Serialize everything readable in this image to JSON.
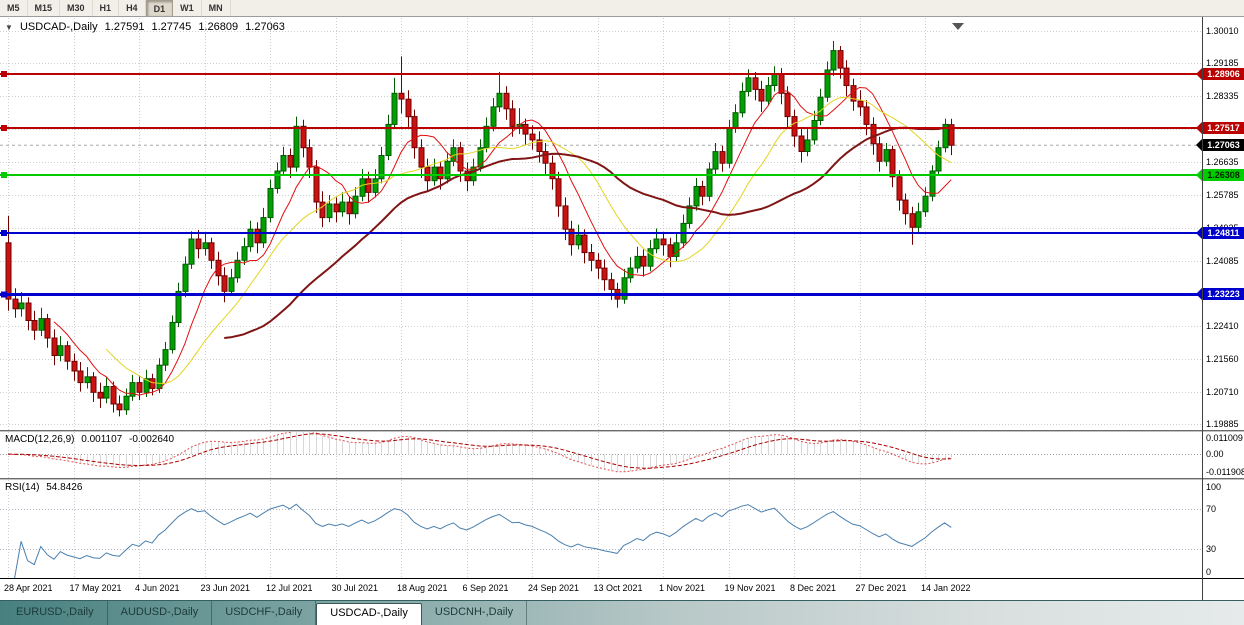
{
  "toolbar": {
    "timeframes": [
      {
        "label": "M5",
        "active": false
      },
      {
        "label": "M15",
        "active": false
      },
      {
        "label": "M30",
        "active": false
      },
      {
        "label": "H1",
        "active": false
      },
      {
        "label": "H4",
        "active": false
      },
      {
        "label": "D1",
        "active": true
      },
      {
        "label": "W1",
        "active": false
      },
      {
        "label": "MN",
        "active": false
      }
    ]
  },
  "header": {
    "collapse_icon": "▼",
    "symbol": "USDCAD-,Daily",
    "open": "1.27591",
    "high": "1.27745",
    "low": "1.26809",
    "close": "1.27063"
  },
  "price_axis": {
    "ticks": [
      "1.30010",
      "1.29185",
      "1.28335",
      "1.27485",
      "1.26635",
      "1.25785",
      "1.24935",
      "1.24085",
      "1.23235",
      "1.22410",
      "1.21560",
      "1.20710",
      "1.19885"
    ]
  },
  "hlines": [
    {
      "price": 1.28906,
      "label": "1.28906",
      "color": "#bb0000",
      "text_color": "#ffffff",
      "width": 2
    },
    {
      "price": 1.27517,
      "label": "1.27517",
      "color": "#bb0000",
      "text_color": "#ffffff",
      "width": 2
    },
    {
      "price": 1.26308,
      "label": "1.26308",
      "color": "#00cc00",
      "text_color": "#002200",
      "width": 2
    },
    {
      "price": 1.24811,
      "label": "1.24811",
      "color": "#0000cc",
      "text_color": "#ffffff",
      "width": 2
    },
    {
      "price": 1.23223,
      "label": "1.23223",
      "color": "#0000cc",
      "text_color": "#ffffff",
      "width": 3
    }
  ],
  "current_price": {
    "value": 1.27063,
    "label": "1.27063",
    "bg": "#000000",
    "text_color": "#ffffff"
  },
  "macd": {
    "title": "MACD(12,26,9)",
    "value_main": "0.001107",
    "value_signal": "-0.002640",
    "fast": 12,
    "slow": 26,
    "signal_period": 9,
    "range": [
      -0.011908,
      0.011009
    ],
    "axis_labels": [
      "0.011009",
      "0.00",
      "-0.011908"
    ],
    "line_color": "#e05050",
    "signal_color": "#aa0000",
    "hist_color": "#d8d8d8"
  },
  "rsi": {
    "title": "RSI(14)",
    "value": "54.8426",
    "period": 14,
    "levels": [
      70,
      30
    ],
    "axis_labels": [
      "100",
      "70",
      "30",
      "0"
    ],
    "color": "#4a7fae"
  },
  "tabs": {
    "items": [
      {
        "label": "EURUSD-,Daily",
        "active": false
      },
      {
        "label": "AUDUSD-,Daily",
        "active": false
      },
      {
        "label": "USDCHF-,Daily",
        "active": false
      },
      {
        "label": "USDCAD-,Daily",
        "active": true
      },
      {
        "label": "USDCNH-,Daily",
        "active": false
      }
    ]
  },
  "shift_marker_color": "#555555",
  "chart_data": {
    "type": "candlestick",
    "symbol": "USDCAD",
    "timeframe": "Daily",
    "y_range": [
      1.1973,
      1.3034
    ],
    "bars_per_label": 10,
    "x_labels": [
      "28 Apr 2021",
      "17 May 2021",
      "4 Jun 2021",
      "23 Jun 2021",
      "12 Jul 2021",
      "30 Jul 2021",
      "18 Aug 2021",
      "6 Sep 2021",
      "24 Sep 2021",
      "13 Oct 2021",
      "1 Nov 2021",
      "19 Nov 2021",
      "8 Dec 2021",
      "27 Dec 2021",
      "14 Jan 2022"
    ],
    "up_fill": "#00a000",
    "up_stroke": "#005a00",
    "down_fill": "#cc1111",
    "down_stroke": "#6e0000",
    "moving_averages": [
      {
        "period": 8,
        "color": "#e01010",
        "width": 1
      },
      {
        "period": 16,
        "color": "#e2d51f",
        "width": 1
      },
      {
        "period": 34,
        "color": "#801515",
        "width": 2
      }
    ],
    "ohlc": [
      [
        1.2455,
        1.2525,
        1.228,
        1.231
      ],
      [
        1.231,
        1.2338,
        1.2262,
        1.2285
      ],
      [
        1.2285,
        1.2328,
        1.2265,
        1.23
      ],
      [
        1.23,
        1.2315,
        1.223,
        1.2255
      ],
      [
        1.2255,
        1.228,
        1.2205,
        1.223
      ],
      [
        1.223,
        1.2288,
        1.2215,
        1.226
      ],
      [
        1.226,
        1.2272,
        1.2185,
        1.221
      ],
      [
        1.221,
        1.2232,
        1.214,
        1.2165
      ],
      [
        1.2165,
        1.2215,
        1.215,
        1.219
      ],
      [
        1.219,
        1.2202,
        1.2128,
        1.215
      ],
      [
        1.215,
        1.217,
        1.21,
        1.2125
      ],
      [
        1.2125,
        1.2148,
        1.2072,
        1.2095
      ],
      [
        1.2095,
        1.2135,
        1.208,
        1.211
      ],
      [
        1.211,
        1.2122,
        1.2045,
        1.207
      ],
      [
        1.207,
        1.2095,
        1.203,
        1.2055
      ],
      [
        1.2055,
        1.2108,
        1.2042,
        1.2085
      ],
      [
        1.2085,
        1.2098,
        1.2018,
        1.204
      ],
      [
        1.204,
        1.2062,
        1.2008,
        1.2025
      ],
      [
        1.2025,
        1.208,
        1.2012,
        1.206
      ],
      [
        1.206,
        1.2115,
        1.2048,
        1.2095
      ],
      [
        1.2095,
        1.2112,
        1.205,
        1.207
      ],
      [
        1.207,
        1.2128,
        1.2058,
        1.2105
      ],
      [
        1.2105,
        1.2118,
        1.2062,
        1.208
      ],
      [
        1.208,
        1.2158,
        1.2068,
        1.214
      ],
      [
        1.214,
        1.22,
        1.2125,
        1.218
      ],
      [
        1.218,
        1.2268,
        1.217,
        1.225
      ],
      [
        1.225,
        1.2352,
        1.2238,
        1.233
      ],
      [
        1.233,
        1.242,
        1.2315,
        1.24
      ],
      [
        1.24,
        1.2485,
        1.2388,
        1.2465
      ],
      [
        1.2465,
        1.2488,
        1.2415,
        1.244
      ],
      [
        1.244,
        1.2478,
        1.2422,
        1.2455
      ],
      [
        1.2455,
        1.2468,
        1.2388,
        1.241
      ],
      [
        1.241,
        1.2432,
        1.2345,
        1.237
      ],
      [
        1.237,
        1.2392,
        1.2302,
        1.233
      ],
      [
        1.233,
        1.2388,
        1.2318,
        1.2365
      ],
      [
        1.2365,
        1.2432,
        1.2352,
        1.241
      ],
      [
        1.241,
        1.2468,
        1.2398,
        1.2445
      ],
      [
        1.2445,
        1.2512,
        1.2432,
        1.249
      ],
      [
        1.249,
        1.2508,
        1.2428,
        1.2455
      ],
      [
        1.2455,
        1.2545,
        1.2442,
        1.252
      ],
      [
        1.252,
        1.2618,
        1.2508,
        1.2595
      ],
      [
        1.2595,
        1.2662,
        1.2582,
        1.264
      ],
      [
        1.264,
        1.2702,
        1.2628,
        1.268
      ],
      [
        1.268,
        1.2698,
        1.2622,
        1.265
      ],
      [
        1.265,
        1.278,
        1.2638,
        1.2755
      ],
      [
        1.2755,
        1.2772,
        1.2675,
        1.27
      ],
      [
        1.27,
        1.2722,
        1.2622,
        1.265
      ],
      [
        1.265,
        1.2668,
        1.2532,
        1.256
      ],
      [
        1.256,
        1.2588,
        1.2495,
        1.252
      ],
      [
        1.252,
        1.2578,
        1.2508,
        1.2555
      ],
      [
        1.2555,
        1.2572,
        1.2508,
        1.2535
      ],
      [
        1.2535,
        1.2585,
        1.2522,
        1.256
      ],
      [
        1.256,
        1.2575,
        1.2502,
        1.253
      ],
      [
        1.253,
        1.2598,
        1.2518,
        1.2575
      ],
      [
        1.2575,
        1.2645,
        1.2562,
        1.262
      ],
      [
        1.262,
        1.2638,
        1.2558,
        1.2585
      ],
      [
        1.2585,
        1.2645,
        1.2572,
        1.262
      ],
      [
        1.262,
        1.2702,
        1.2608,
        1.268
      ],
      [
        1.268,
        1.2785,
        1.2668,
        1.276
      ],
      [
        1.276,
        1.288,
        1.2748,
        1.284
      ],
      [
        1.284,
        1.2935,
        1.2788,
        1.2825
      ],
      [
        1.2825,
        1.2848,
        1.2752,
        1.278
      ],
      [
        1.278,
        1.2798,
        1.2672,
        1.27
      ],
      [
        1.27,
        1.2722,
        1.2622,
        1.265
      ],
      [
        1.265,
        1.2672,
        1.2588,
        1.2615
      ],
      [
        1.2615,
        1.2672,
        1.2602,
        1.265
      ],
      [
        1.265,
        1.2665,
        1.2592,
        1.262
      ],
      [
        1.262,
        1.2688,
        1.2608,
        1.2665
      ],
      [
        1.2665,
        1.2722,
        1.2652,
        1.27
      ],
      [
        1.27,
        1.2715,
        1.2612,
        1.264
      ],
      [
        1.264,
        1.2662,
        1.2588,
        1.2615
      ],
      [
        1.2615,
        1.2672,
        1.2602,
        1.265
      ],
      [
        1.265,
        1.2722,
        1.2638,
        1.27
      ],
      [
        1.27,
        1.2778,
        1.2688,
        1.2755
      ],
      [
        1.2755,
        1.2828,
        1.2742,
        1.2805
      ],
      [
        1.2805,
        1.2895,
        1.2792,
        1.284
      ],
      [
        1.284,
        1.2858,
        1.2772,
        1.28
      ],
      [
        1.28,
        1.2822,
        1.2728,
        1.2755
      ],
      [
        1.2755,
        1.2802,
        1.2735,
        1.276
      ],
      [
        1.276,
        1.2775,
        1.2708,
        1.2735
      ],
      [
        1.2735,
        1.2758,
        1.2695,
        1.272
      ],
      [
        1.272,
        1.2742,
        1.2662,
        1.269
      ],
      [
        1.269,
        1.2712,
        1.2632,
        1.266
      ],
      [
        1.266,
        1.268,
        1.2592,
        1.262
      ],
      [
        1.262,
        1.2638,
        1.2522,
        1.255
      ],
      [
        1.255,
        1.2572,
        1.2462,
        1.249
      ],
      [
        1.249,
        1.2512,
        1.2422,
        1.245
      ],
      [
        1.245,
        1.2502,
        1.2438,
        1.2475
      ],
      [
        1.2475,
        1.249,
        1.2402,
        1.243
      ],
      [
        1.243,
        1.2452,
        1.2382,
        1.241
      ],
      [
        1.241,
        1.2428,
        1.2362,
        1.239
      ],
      [
        1.239,
        1.2412,
        1.2332,
        1.236
      ],
      [
        1.236,
        1.2378,
        1.2308,
        1.2335
      ],
      [
        1.2335,
        1.2352,
        1.2288,
        1.231
      ],
      [
        1.231,
        1.2388,
        1.2298,
        1.2365
      ],
      [
        1.2365,
        1.2418,
        1.2352,
        1.239
      ],
      [
        1.239,
        1.2445,
        1.2378,
        1.242
      ],
      [
        1.242,
        1.2438,
        1.2368,
        1.2395
      ],
      [
        1.2395,
        1.2462,
        1.2382,
        1.244
      ],
      [
        1.244,
        1.2492,
        1.2428,
        1.2465
      ],
      [
        1.2465,
        1.2482,
        1.2422,
        1.245
      ],
      [
        1.245,
        1.2468,
        1.2392,
        1.242
      ],
      [
        1.242,
        1.2478,
        1.2408,
        1.2455
      ],
      [
        1.2455,
        1.2528,
        1.2442,
        1.2505
      ],
      [
        1.2505,
        1.2572,
        1.2492,
        1.255
      ],
      [
        1.255,
        1.2622,
        1.2538,
        1.26
      ],
      [
        1.26,
        1.2615,
        1.2552,
        1.2575
      ],
      [
        1.2575,
        1.2662,
        1.2562,
        1.2645
      ],
      [
        1.2645,
        1.2712,
        1.2632,
        1.269
      ],
      [
        1.269,
        1.2705,
        1.2638,
        1.266
      ],
      [
        1.266,
        1.2772,
        1.2648,
        1.275
      ],
      [
        1.275,
        1.2812,
        1.2738,
        1.279
      ],
      [
        1.279,
        1.2868,
        1.2778,
        1.2845
      ],
      [
        1.2845,
        1.2902,
        1.2832,
        1.288
      ],
      [
        1.288,
        1.2895,
        1.2822,
        1.285
      ],
      [
        1.285,
        1.2872,
        1.2792,
        1.282
      ],
      [
        1.282,
        1.2882,
        1.2808,
        1.286
      ],
      [
        1.286,
        1.291,
        1.2845,
        1.289
      ],
      [
        1.289,
        1.2905,
        1.2812,
        1.284
      ],
      [
        1.284,
        1.2858,
        1.2752,
        1.278
      ],
      [
        1.278,
        1.2798,
        1.2702,
        1.273
      ],
      [
        1.273,
        1.2752,
        1.2662,
        1.269
      ],
      [
        1.269,
        1.2748,
        1.2678,
        1.272
      ],
      [
        1.272,
        1.2795,
        1.2708,
        1.277
      ],
      [
        1.277,
        1.2852,
        1.2758,
        1.283
      ],
      [
        1.283,
        1.2922,
        1.2818,
        1.29
      ],
      [
        1.29,
        1.2975,
        1.2885,
        1.295
      ],
      [
        1.295,
        1.2962,
        1.2878,
        1.2905
      ],
      [
        1.2905,
        1.2925,
        1.2832,
        1.286
      ],
      [
        1.286,
        1.2878,
        1.2795,
        1.282
      ],
      [
        1.282,
        1.2848,
        1.2782,
        1.2805
      ],
      [
        1.2805,
        1.2822,
        1.2732,
        1.276
      ],
      [
        1.276,
        1.2778,
        1.2682,
        1.271
      ],
      [
        1.271,
        1.2728,
        1.2638,
        1.2665
      ],
      [
        1.2665,
        1.2712,
        1.2652,
        1.2695
      ],
      [
        1.2695,
        1.2705,
        1.2598,
        1.2625
      ],
      [
        1.2625,
        1.2642,
        1.2538,
        1.2565
      ],
      [
        1.2565,
        1.2582,
        1.2502,
        1.253
      ],
      [
        1.253,
        1.2548,
        1.245,
        1.2495
      ],
      [
        1.2495,
        1.2558,
        1.2482,
        1.2535
      ],
      [
        1.2535,
        1.2598,
        1.2522,
        1.2575
      ],
      [
        1.2575,
        1.2655,
        1.2562,
        1.264
      ],
      [
        1.264,
        1.2718,
        1.2628,
        1.27
      ],
      [
        1.27,
        1.2775,
        1.2688,
        1.276
      ],
      [
        1.27591,
        1.27745,
        1.26809,
        1.27063
      ]
    ]
  }
}
